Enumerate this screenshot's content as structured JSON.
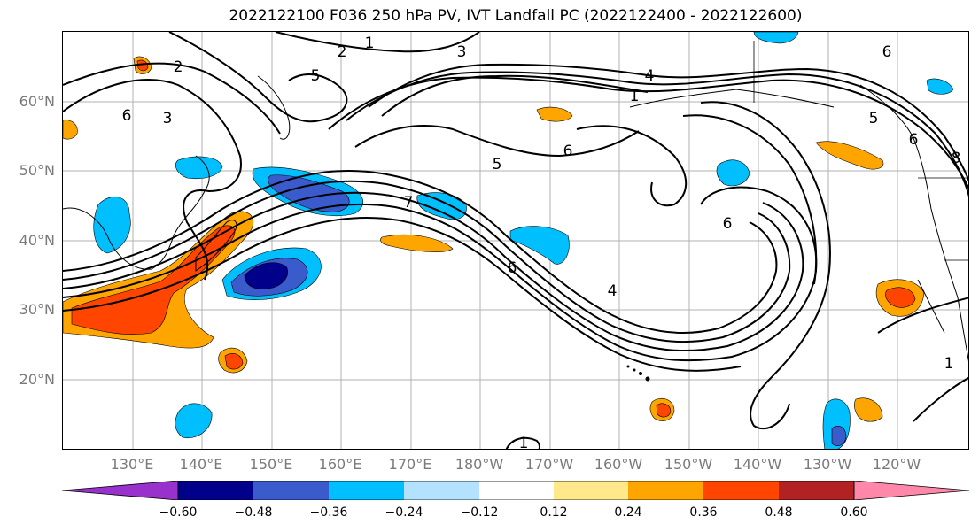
{
  "title": "2022122100 F036 250 hPa PV, IVT Landfall PC (2022122400 - 2022122600)",
  "lat_labels": [
    "60°N",
    "50°N",
    "40°N",
    "30°N",
    "20°N"
  ],
  "lon_labels": [
    "130°E",
    "140°E",
    "150°E",
    "160°E",
    "170°E",
    "180°W",
    "170°W",
    "160°W",
    "150°W",
    "140°W",
    "130°W",
    "120°W"
  ],
  "contour_labels": [
    "1",
    "2",
    "3",
    "5",
    "6",
    "4",
    "1",
    "3",
    "2",
    "6",
    "5",
    "6",
    "5",
    "7",
    "6",
    "6",
    "4",
    "1",
    "1",
    "6",
    "8"
  ],
  "colorbar": {
    "colors": [
      "#9932cc",
      "#00008b",
      "#3a5bcc",
      "#00bfff",
      "#b2e2ff",
      "#ffffff",
      "#ffe98a",
      "#ffa500",
      "#ff4500",
      "#b22222",
      "#ff88aa"
    ],
    "tick_labels": [
      "−0.60",
      "−0.48",
      "−0.36",
      "−0.24",
      "−0.12",
      "0.12",
      "0.24",
      "0.36",
      "0.48",
      "0.60"
    ]
  },
  "colors": {
    "grid": "#b0b0b0",
    "contour": "#000000",
    "tick_text": "#7a7a7a"
  }
}
